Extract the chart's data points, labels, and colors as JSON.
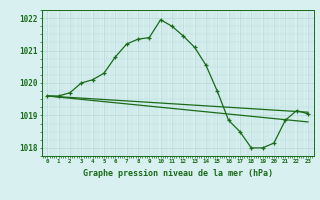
{
  "title": "Graphe pression niveau de la mer (hPa)",
  "xlabel_hours": [
    0,
    1,
    2,
    3,
    4,
    5,
    6,
    7,
    8,
    9,
    10,
    11,
    12,
    13,
    14,
    15,
    16,
    17,
    18,
    19,
    20,
    21,
    22,
    23
  ],
  "line1": [
    1019.6,
    1019.6,
    1019.7,
    1020.0,
    1020.1,
    1020.3,
    1020.8,
    1021.2,
    1021.35,
    1021.4,
    1021.95,
    1021.75,
    1021.45,
    1021.1,
    1020.55,
    1019.75,
    1018.85,
    1018.5,
    1018.0,
    1018.0,
    1018.15,
    1018.85,
    1019.15,
    1019.05
  ],
  "line3_x": [
    0,
    23
  ],
  "line3_y": [
    1019.6,
    1018.8
  ],
  "line4_x": [
    0,
    23
  ],
  "line4_y": [
    1019.6,
    1019.1
  ],
  "line_color": "#1a6b1a",
  "bg_color": "#d8f0f0",
  "grid_color_major": "#b8d8d8",
  "grid_color_minor": "#cce8e8",
  "ylim": [
    1017.75,
    1022.25
  ],
  "xlim": [
    -0.5,
    23.5
  ],
  "yticks": [
    1018,
    1019,
    1020,
    1021,
    1022
  ]
}
